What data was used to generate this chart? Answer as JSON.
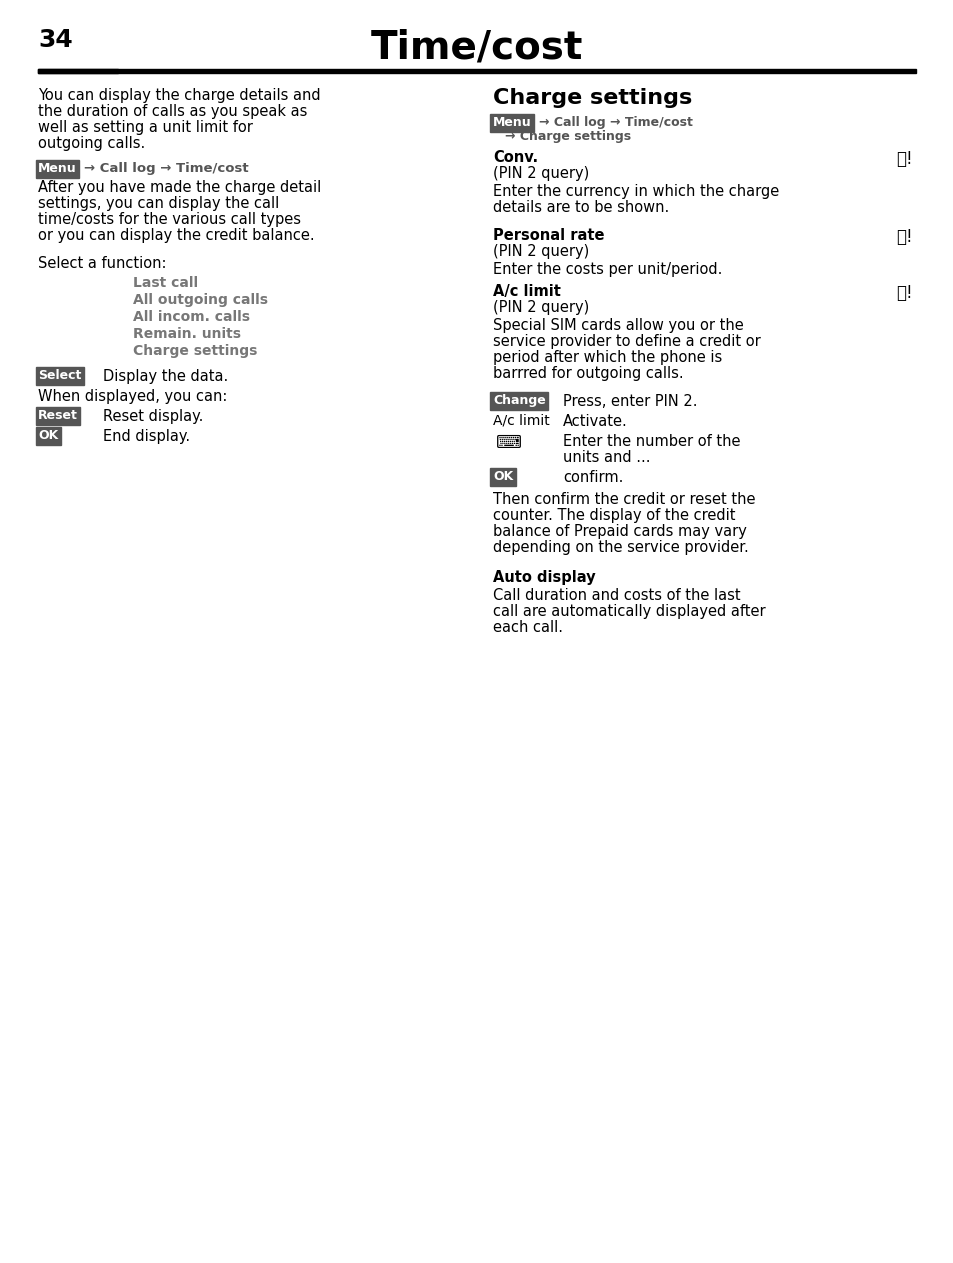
{
  "page_number": "34",
  "title": "Time/cost",
  "bg_color": "#ffffff",
  "text_color": "#000000",
  "gray_color": "#555555",
  "badge_bg": "#555555",
  "badge_fg": "#ffffff",
  "left_col": {
    "intro": "You can display the charge details and the duration of calls as you speak as well as setting a unit limit for outgoing calls.",
    "menu_badge": "Menu",
    "menu_path": "→ Call log → Time/cost",
    "body1": "After you have made the charge detail settings, you can display the call time/costs for the various call types or you can display the credit balance.",
    "select_label": "Select a function:",
    "menu_items": [
      "Last call",
      "All outgoing calls",
      "All incom. calls",
      "Remain. units",
      "Charge settings"
    ],
    "select_badge": "Select",
    "select_desc": "Display the data.",
    "when_text": "When displayed, you can:",
    "reset_badge": "Reset",
    "reset_desc": "Reset display.",
    "ok_badge": "OK",
    "ok_desc": "End display."
  },
  "right_col": {
    "section_title": "Charge settings",
    "menu_badge": "Menu",
    "menu_path": "→ Call log → Time/cost\n→ Charge settings",
    "conv_bold": "Conv.",
    "conv_pin": "(PIN 2 query)",
    "conv_desc": "Enter the currency in which the charge details are to be shown.",
    "personal_bold": "Personal rate",
    "personal_pin": "(PIN 2 query)",
    "personal_desc": "Enter the costs per unit/period.",
    "aclimit_bold": "A/c limit",
    "aclimit_pin": "(PIN 2 query)",
    "aclimit_desc": "Special SIM cards allow you or the service provider to define a credit or period after which the phone is barrred for outgoing calls.",
    "change_badge": "Change",
    "change_desc": "Press, enter PIN 2.",
    "aclimit_label": "A/c limit",
    "aclimit_act": "Activate.",
    "keyboard_desc": "Enter the number of the units and ...",
    "ok_badge": "OK",
    "ok_desc": "confirm.",
    "footer": "Then confirm the credit or reset the counter. The display of the credit balance of Prepaid cards may vary depending on the service provider.",
    "auto_bold": "Auto display",
    "auto_desc": "Call duration and costs of the last call are automatically displayed after each call."
  }
}
